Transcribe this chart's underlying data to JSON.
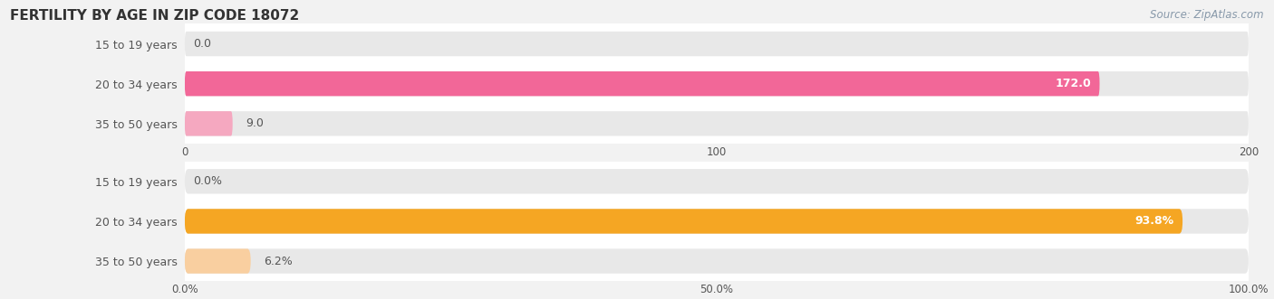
{
  "title": "FERTILITY BY AGE IN ZIP CODE 18072",
  "source": "Source: ZipAtlas.com",
  "top_chart": {
    "categories": [
      "15 to 19 years",
      "20 to 34 years",
      "35 to 50 years"
    ],
    "values": [
      0.0,
      172.0,
      9.0
    ],
    "bar_color_main": "#f26798",
    "bar_color_light": "#f5a8c0",
    "xlim": [
      0,
      200
    ],
    "xticks": [
      0.0,
      100.0,
      200.0
    ],
    "value_labels": [
      "0.0",
      "172.0",
      "9.0"
    ],
    "label_inside": [
      false,
      true,
      false
    ]
  },
  "bottom_chart": {
    "categories": [
      "15 to 19 years",
      "20 to 34 years",
      "35 to 50 years"
    ],
    "values": [
      0.0,
      93.8,
      6.2
    ],
    "bar_color_main": "#f5a623",
    "bar_color_light": "#f9cfa0",
    "xlim": [
      0,
      100
    ],
    "xticks": [
      0.0,
      50.0,
      100.0
    ],
    "xtick_labels": [
      "0.0%",
      "50.0%",
      "100.0%"
    ],
    "value_labels": [
      "0.0%",
      "93.8%",
      "6.2%"
    ],
    "label_inside": [
      false,
      true,
      false
    ]
  },
  "fig_bg_color": "#f2f2f2",
  "chart_bg_color": "#ffffff",
  "row_bg_color": "#e8e8e8",
  "label_color": "#555555",
  "title_color": "#333333",
  "source_color": "#8899aa",
  "bar_height": 0.62,
  "label_fontsize": 9,
  "tick_fontsize": 8.5,
  "title_fontsize": 11
}
